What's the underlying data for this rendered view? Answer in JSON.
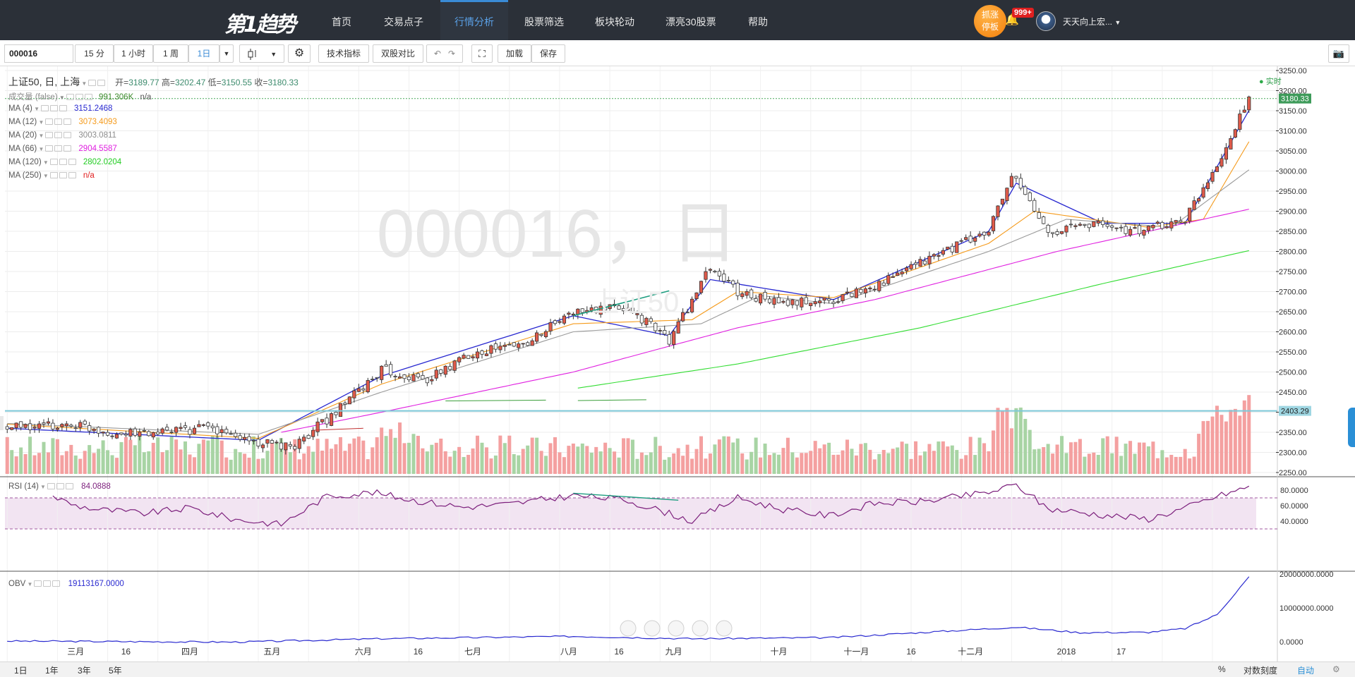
{
  "nav": {
    "logo": "第1趋势",
    "items": [
      {
        "label": "首页",
        "active": false
      },
      {
        "label": "交易点子",
        "active": false
      },
      {
        "label": "行情分析",
        "active": true
      },
      {
        "label": "股票筛选",
        "active": false
      },
      {
        "label": "板块轮动",
        "active": false
      },
      {
        "label": "漂亮30股票",
        "active": false
      },
      {
        "label": "帮助",
        "active": false
      }
    ],
    "alert_line1": "抓涨",
    "alert_line2": "停板",
    "badge": "999+",
    "username": "天天向上宏...",
    "bell_icon": "bell-icon",
    "caret_icon": "caret-down-icon"
  },
  "toolbar": {
    "symbol": "000016",
    "intervals": [
      "15 分",
      "1 小时",
      "1 周",
      "1日"
    ],
    "active_interval": "1日",
    "indicators_label": "技术指标",
    "compare_label": "双股对比",
    "load_label": "加载",
    "save_label": "保存",
    "icons": [
      "candlestick-icon",
      "gear-icon",
      "undo-icon",
      "redo-icon",
      "fullscreen-icon",
      "camera-icon"
    ]
  },
  "legend": {
    "title": "上证50, 日, 上海",
    "open_label": "开=",
    "open": "3189.77",
    "high_label": "高=",
    "high": "3202.47",
    "low_label": "低=",
    "low": "3150.55",
    "close_label": "收=",
    "close": "3180.33",
    "volume_label": "成交量 (false)",
    "volume": "991.306K",
    "volume_ma": "n/a",
    "realtime": "实时",
    "mas": [
      {
        "name": "MA (4)",
        "value": "3151.2468",
        "color": "#2828d0"
      },
      {
        "name": "MA (12)",
        "value": "3073.4093",
        "color": "#f59a1a"
      },
      {
        "name": "MA (20)",
        "value": "3003.0811",
        "color": "#8c8c8c"
      },
      {
        "name": "MA (66)",
        "value": "2904.5587",
        "color": "#e020e0"
      },
      {
        "name": "MA (120)",
        "value": "2802.0204",
        "color": "#22cc22"
      },
      {
        "name": "MA (250)",
        "value": "n/a",
        "color": "#e02020"
      }
    ]
  },
  "watermark": {
    "line1": "000016，日",
    "line2": "上证50"
  },
  "price_axis": {
    "ticks": [
      "3250.00",
      "3200.00",
      "3150.00",
      "3100.00",
      "3050.00",
      "3000.00",
      "2950.00",
      "2900.00",
      "2850.00",
      "2800.00",
      "2750.00",
      "2700.00",
      "2650.00",
      "2600.00",
      "2550.00",
      "2500.00",
      "2450.00",
      "2400.00",
      "2350.00",
      "2300.00",
      "2250.00"
    ],
    "last_price": "3180.33",
    "hline_price": "2403.29"
  },
  "rsi": {
    "label": "RSI (14)",
    "value": "84.0888",
    "ticks": [
      "80.0000",
      "60.0000",
      "40.0000"
    ],
    "upper": 70,
    "lower": 30
  },
  "obv": {
    "label": "OBV",
    "value": "19113167.0000",
    "ticks": [
      "20000000.0000",
      "10000000.0000",
      "0.0000"
    ]
  },
  "time_axis": {
    "labels": [
      "三月",
      "16",
      "四月",
      "五月",
      "六月",
      "16",
      "七月",
      "八月",
      "16",
      "九月",
      "十月",
      "十一月",
      "16",
      "十二月",
      "2018",
      "17"
    ]
  },
  "bottom": {
    "ranges": [
      "1日",
      "1年",
      "3年",
      "5年"
    ],
    "percent": "%",
    "log": "对数刻度",
    "auto": "自动"
  },
  "chart_data": {
    "type": "candlestick",
    "title": "上证50, 日, 上海",
    "ylim": [
      2250,
      3250
    ],
    "series": [
      {
        "name": "上证50",
        "close_points": [
          [
            0,
            2360
          ],
          [
            15,
            2370
          ],
          [
            25,
            2345
          ],
          [
            35,
            2350
          ],
          [
            44,
            2360
          ],
          [
            55,
            2325
          ],
          [
            62,
            2310
          ],
          [
            72,
            2400
          ],
          [
            82,
            2505
          ],
          [
            92,
            2480
          ],
          [
            102,
            2550
          ],
          [
            113,
            2570
          ],
          [
            124,
            2650
          ],
          [
            136,
            2660
          ],
          [
            145,
            2580
          ],
          [
            154,
            2760
          ],
          [
            160,
            2700
          ],
          [
            170,
            2670
          ],
          [
            181,
            2680
          ],
          [
            193,
            2730
          ],
          [
            205,
            2800
          ],
          [
            215,
            2850
          ],
          [
            220,
            2990
          ],
          [
            228,
            2850
          ],
          [
            238,
            2870
          ],
          [
            248,
            2850
          ],
          [
            258,
            2880
          ],
          [
            268,
            3080
          ],
          [
            272,
            3180
          ]
        ]
      },
      {
        "name": "MA (4)",
        "points": [
          [
            0,
            2360
          ],
          [
            55,
            2330
          ],
          [
            82,
            2490
          ],
          [
            124,
            2640
          ],
          [
            145,
            2590
          ],
          [
            154,
            2730
          ],
          [
            181,
            2680
          ],
          [
            215,
            2850
          ],
          [
            221,
            2970
          ],
          [
            240,
            2870
          ],
          [
            258,
            2870
          ],
          [
            272,
            3151
          ]
        ]
      },
      {
        "name": "MA (12)",
        "points": [
          [
            0,
            2370
          ],
          [
            55,
            2335
          ],
          [
            82,
            2470
          ],
          [
            124,
            2620
          ],
          [
            150,
            2630
          ],
          [
            160,
            2700
          ],
          [
            181,
            2685
          ],
          [
            215,
            2820
          ],
          [
            225,
            2900
          ],
          [
            250,
            2860
          ],
          [
            262,
            2880
          ],
          [
            272,
            3073
          ]
        ]
      },
      {
        "name": "MA (20)",
        "points": [
          [
            0,
            2372
          ],
          [
            55,
            2345
          ],
          [
            82,
            2450
          ],
          [
            124,
            2600
          ],
          [
            152,
            2620
          ],
          [
            165,
            2690
          ],
          [
            181,
            2670
          ],
          [
            215,
            2800
          ],
          [
            232,
            2880
          ],
          [
            255,
            2860
          ],
          [
            272,
            3003
          ]
        ]
      },
      {
        "name": "MA (66)",
        "points": [
          [
            60,
            2350
          ],
          [
            82,
            2400
          ],
          [
            124,
            2500
          ],
          [
            160,
            2610
          ],
          [
            190,
            2680
          ],
          [
            230,
            2800
          ],
          [
            272,
            2905
          ]
        ]
      },
      {
        "name": "MA (120)",
        "points": [
          [
            125,
            2460
          ],
          [
            160,
            2520
          ],
          [
            200,
            2610
          ],
          [
            240,
            2720
          ],
          [
            272,
            2802
          ]
        ]
      }
    ],
    "volume_last": "991.306K",
    "rsi_points": [
      [
        10,
        72
      ],
      [
        15,
        60
      ],
      [
        20,
        55
      ],
      [
        30,
        50
      ],
      [
        40,
        57
      ],
      [
        50,
        42
      ],
      [
        60,
        36
      ],
      [
        70,
        72
      ],
      [
        80,
        77
      ],
      [
        90,
        66
      ],
      [
        100,
        58
      ],
      [
        110,
        62
      ],
      [
        124,
        73
      ],
      [
        135,
        68
      ],
      [
        145,
        50
      ],
      [
        150,
        40
      ],
      [
        160,
        70
      ],
      [
        170,
        55
      ],
      [
        180,
        47
      ],
      [
        190,
        63
      ],
      [
        200,
        65
      ],
      [
        210,
        73
      ],
      [
        215,
        77
      ],
      [
        221,
        87
      ],
      [
        228,
        56
      ],
      [
        240,
        48
      ],
      [
        250,
        43
      ],
      [
        258,
        57
      ],
      [
        265,
        72
      ],
      [
        272,
        84.09
      ]
    ],
    "obv_points": [
      [
        0,
        200000
      ],
      [
        50,
        -100000
      ],
      [
        82,
        900000
      ],
      [
        124,
        1600000
      ],
      [
        150,
        900000
      ],
      [
        180,
        1200000
      ],
      [
        221,
        4300000
      ],
      [
        235,
        2700000
      ],
      [
        250,
        2800000
      ],
      [
        258,
        3900000
      ],
      [
        265,
        8000000
      ],
      [
        272,
        19113167
      ]
    ]
  }
}
